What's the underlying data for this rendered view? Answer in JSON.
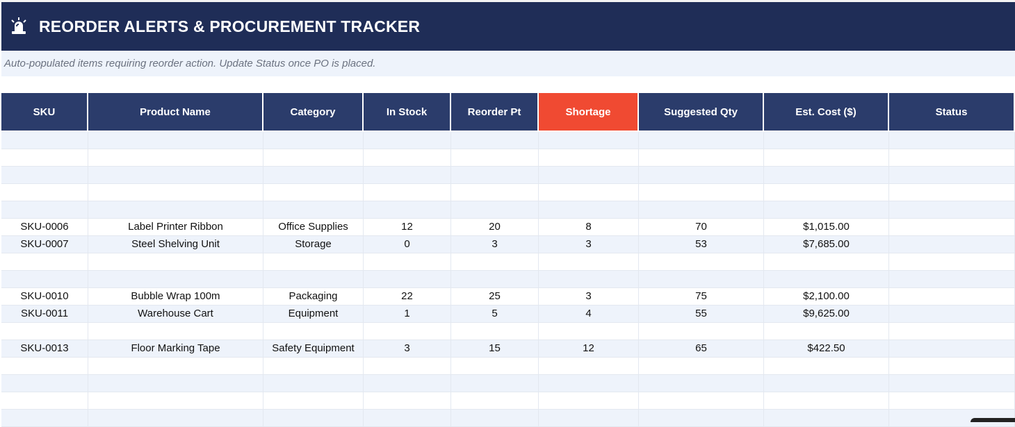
{
  "banner": {
    "title": "REORDER ALERTS & PROCUREMENT TRACKER",
    "icon": "siren-icon"
  },
  "subtitle": "Auto-populated items requiring reorder action.  Update Status once PO is placed.",
  "columns": [
    "SKU",
    "Product Name",
    "Category",
    "In Stock",
    "Reorder Pt",
    "Shortage",
    "Suggested Qty",
    "Est. Cost ($)",
    "Status"
  ],
  "colors": {
    "banner": "#1f2d57",
    "header": "#2b3c6b",
    "alert_header": "#f04a32",
    "alt_row": "#eef3fb"
  },
  "rows": [
    [
      "",
      "",
      "",
      "",
      "",
      "",
      "",
      "",
      ""
    ],
    [
      "",
      "",
      "",
      "",
      "",
      "",
      "",
      "",
      ""
    ],
    [
      "",
      "",
      "",
      "",
      "",
      "",
      "",
      "",
      ""
    ],
    [
      "",
      "",
      "",
      "",
      "",
      "",
      "",
      "",
      ""
    ],
    [
      "",
      "",
      "",
      "",
      "",
      "",
      "",
      "",
      ""
    ],
    [
      "SKU-0006",
      "Label Printer Ribbon",
      "Office Supplies",
      "12",
      "20",
      "8",
      "70",
      "$1,015.00",
      ""
    ],
    [
      "SKU-0007",
      "Steel Shelving Unit",
      "Storage",
      "0",
      "3",
      "3",
      "53",
      "$7,685.00",
      ""
    ],
    [
      "",
      "",
      "",
      "",
      "",
      "",
      "",
      "",
      ""
    ],
    [
      "",
      "",
      "",
      "",
      "",
      "",
      "",
      "",
      ""
    ],
    [
      "SKU-0010",
      "Bubble Wrap 100m",
      "Packaging",
      "22",
      "25",
      "3",
      "75",
      "$2,100.00",
      ""
    ],
    [
      "SKU-0011",
      "Warehouse Cart",
      "Equipment",
      "1",
      "5",
      "4",
      "55",
      "$9,625.00",
      ""
    ],
    [
      "",
      "",
      "",
      "",
      "",
      "",
      "",
      "",
      ""
    ],
    [
      "SKU-0013",
      "Floor Marking Tape",
      "Safety Equipment",
      "3",
      "15",
      "12",
      "65",
      "$422.50",
      ""
    ],
    [
      "",
      "",
      "",
      "",
      "",
      "",
      "",
      "",
      ""
    ],
    [
      "",
      "",
      "",
      "",
      "",
      "",
      "",
      "",
      ""
    ],
    [
      "",
      "",
      "",
      "",
      "",
      "",
      "",
      "",
      ""
    ],
    [
      "",
      "",
      "",
      "",
      "",
      "",
      "",
      "",
      ""
    ]
  ]
}
